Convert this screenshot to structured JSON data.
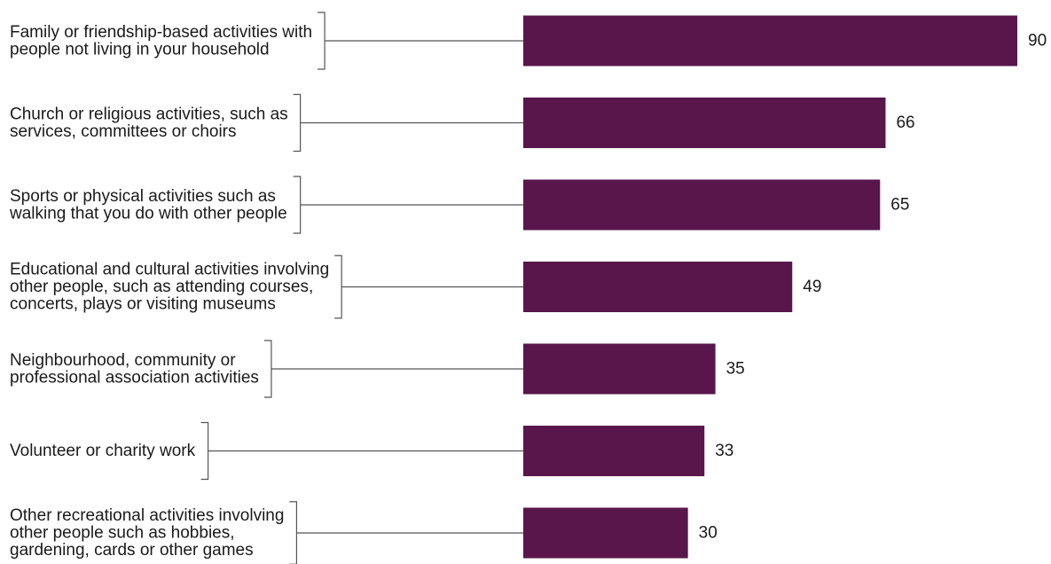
{
  "chart_data": {
    "type": "bar",
    "orientation": "horizontal",
    "bar_color": "#58164B",
    "categories": [
      [
        "Family or friendship-based activities with",
        "people not living in your household"
      ],
      [
        "Church or religious activities, such as",
        "services, committees or choirs"
      ],
      [
        "Sports or physical activities such as",
        "walking that you do with other people"
      ],
      [
        "Educational and cultural activities involving",
        "other people, such as attending courses,",
        "concerts, plays or visiting museums"
      ],
      [
        "Neighbourhood, community or",
        "professional association activities"
      ],
      [
        "Volunteer or charity work"
      ],
      [
        "Other recreational activities involving",
        "other people such as hobbies,",
        "gardening, cards or other games"
      ]
    ],
    "values": [
      90,
      66,
      65,
      49,
      35,
      33,
      30
    ],
    "title": "",
    "xlabel": "",
    "ylabel": "",
    "xlim": [
      0,
      90
    ],
    "grid": false,
    "legend": "none"
  }
}
